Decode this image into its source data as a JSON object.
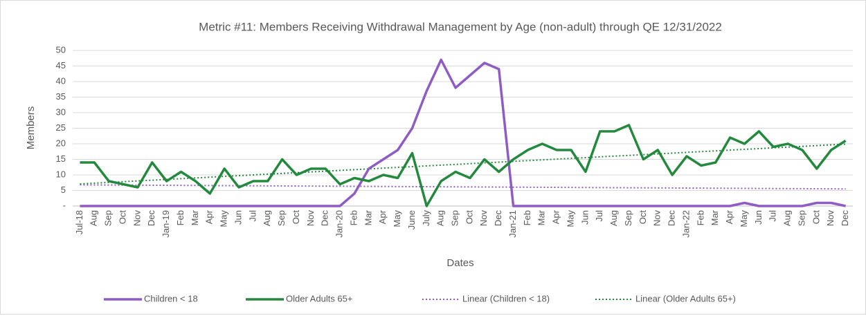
{
  "chart_data": {
    "type": "line",
    "title": "Metric #11: Members Receiving Withdrawal Management by Age (non-adult) through QE 12/31/2022",
    "x_label": "Dates",
    "y_label": "Members",
    "categories": [
      "Jul-18",
      "Aug",
      "Sep",
      "Oct",
      "Nov",
      "Dec",
      "Jan-19",
      "Feb",
      "Mar",
      "Apr",
      "May",
      "Jun",
      "Jul",
      "Aug",
      "Sep",
      "Oct",
      "Nov",
      "Dec",
      "Jan-20",
      "Feb",
      "Mar",
      "Apr",
      "May",
      "June",
      "July",
      "Aug",
      "Sep",
      "Oct",
      "Nov",
      "Dec",
      "Jan-21",
      "Feb",
      "Mar",
      "Apr",
      "May",
      "Jun",
      "Jul",
      "Aug",
      "Sep",
      "Oct",
      "Nov",
      "Dec",
      "Jan-22",
      "Feb",
      "Mar",
      "Apr",
      "May",
      "Jun",
      "Jul",
      "Aug",
      "Sep",
      "Oct",
      "Nov",
      "Dec"
    ],
    "series": [
      {
        "name": "Children < 18",
        "color": "#8e5cc4",
        "values": [
          0,
          0,
          0,
          0,
          0,
          0,
          0,
          0,
          0,
          0,
          0,
          0,
          0,
          0,
          0,
          0,
          0,
          0,
          0,
          4,
          12,
          15,
          18,
          25,
          37,
          47,
          38,
          42,
          46,
          44,
          0,
          0,
          0,
          0,
          0,
          0,
          0,
          0,
          0,
          0,
          0,
          0,
          0,
          0,
          0,
          0,
          1,
          0,
          0,
          0,
          0,
          1,
          1,
          0
        ]
      },
      {
        "name": "Older Adults 65+",
        "color": "#23893d",
        "values": [
          14,
          14,
          8,
          7,
          6,
          14,
          8,
          11,
          8,
          4,
          12,
          6,
          8,
          8,
          15,
          10,
          12,
          12,
          7,
          9,
          8,
          10,
          9,
          17,
          0,
          8,
          11,
          9,
          15,
          11,
          15,
          18,
          20,
          18,
          18,
          11,
          24,
          24,
          26,
          15,
          18,
          10,
          16,
          13,
          14,
          22,
          20,
          24,
          19,
          20,
          18,
          12,
          18,
          21
        ]
      }
    ],
    "trendlines": [
      {
        "name": "Linear (Children < 18)",
        "color": "#8e5cc4",
        "values": [
          6.8,
          5.5
        ]
      },
      {
        "name": "Linear (Older Adults 65+)",
        "color": "#23893d",
        "values": [
          7.1,
          19.9
        ]
      }
    ],
    "ylim": [
      0,
      50
    ],
    "yticks": [
      {
        "value": 0,
        "label": "-"
      },
      5,
      10,
      15,
      20,
      25,
      30,
      35,
      40,
      45,
      50
    ],
    "grid": true
  }
}
